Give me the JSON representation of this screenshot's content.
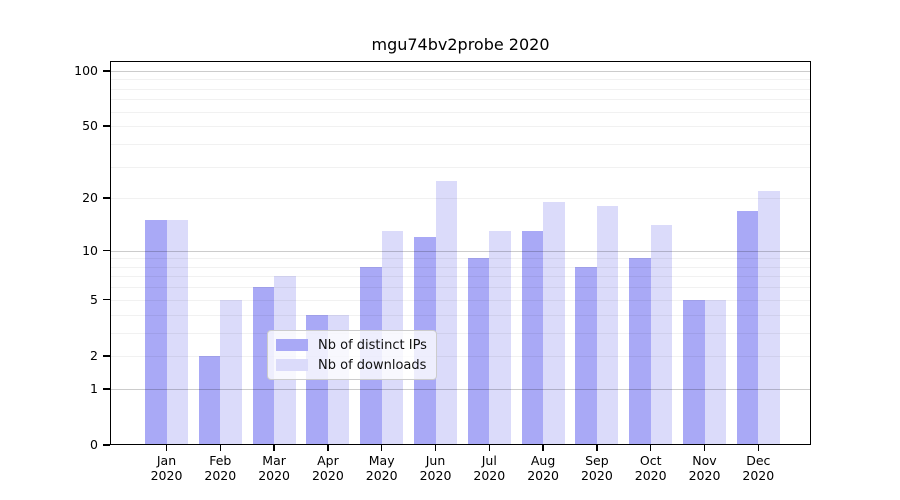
{
  "chart_data": {
    "type": "bar",
    "title": "mgu74bv2probe 2020",
    "categories": [
      "Jan",
      "Feb",
      "Mar",
      "Apr",
      "May",
      "Jun",
      "Jul",
      "Aug",
      "Sep",
      "Oct",
      "Nov",
      "Dec"
    ],
    "category_year": "2020",
    "series": [
      {
        "name": "Nb of distinct IPs",
        "color": "#a9a9f6",
        "values": [
          15,
          2,
          6,
          4,
          8,
          12,
          9,
          13,
          8,
          9,
          5,
          17
        ]
      },
      {
        "name": "Nb of downloads",
        "color": "#dbdbfa",
        "values": [
          15,
          5,
          7,
          4,
          13,
          25,
          13,
          19,
          18,
          14,
          5,
          22
        ]
      }
    ],
    "yscale": "log1p",
    "ylim": [
      0,
      113
    ],
    "ytick_values": [
      100,
      50,
      20,
      10,
      5,
      2,
      1,
      0
    ],
    "ytick_labels": [
      "100",
      "50",
      "20",
      "10",
      "5",
      "2",
      "1",
      "0"
    ],
    "major_grid_values": [
      1,
      10,
      100
    ],
    "minor_grid_values": [
      2,
      3,
      4,
      5,
      6,
      7,
      8,
      9,
      20,
      30,
      40,
      50,
      60,
      70,
      80,
      90
    ],
    "grid": "both",
    "legend_position": "lower center",
    "colors": {
      "spine": "#000000",
      "major_grid": "#cccccc",
      "minor_grid": "#f1f1f1",
      "background": "#ffffff"
    }
  }
}
